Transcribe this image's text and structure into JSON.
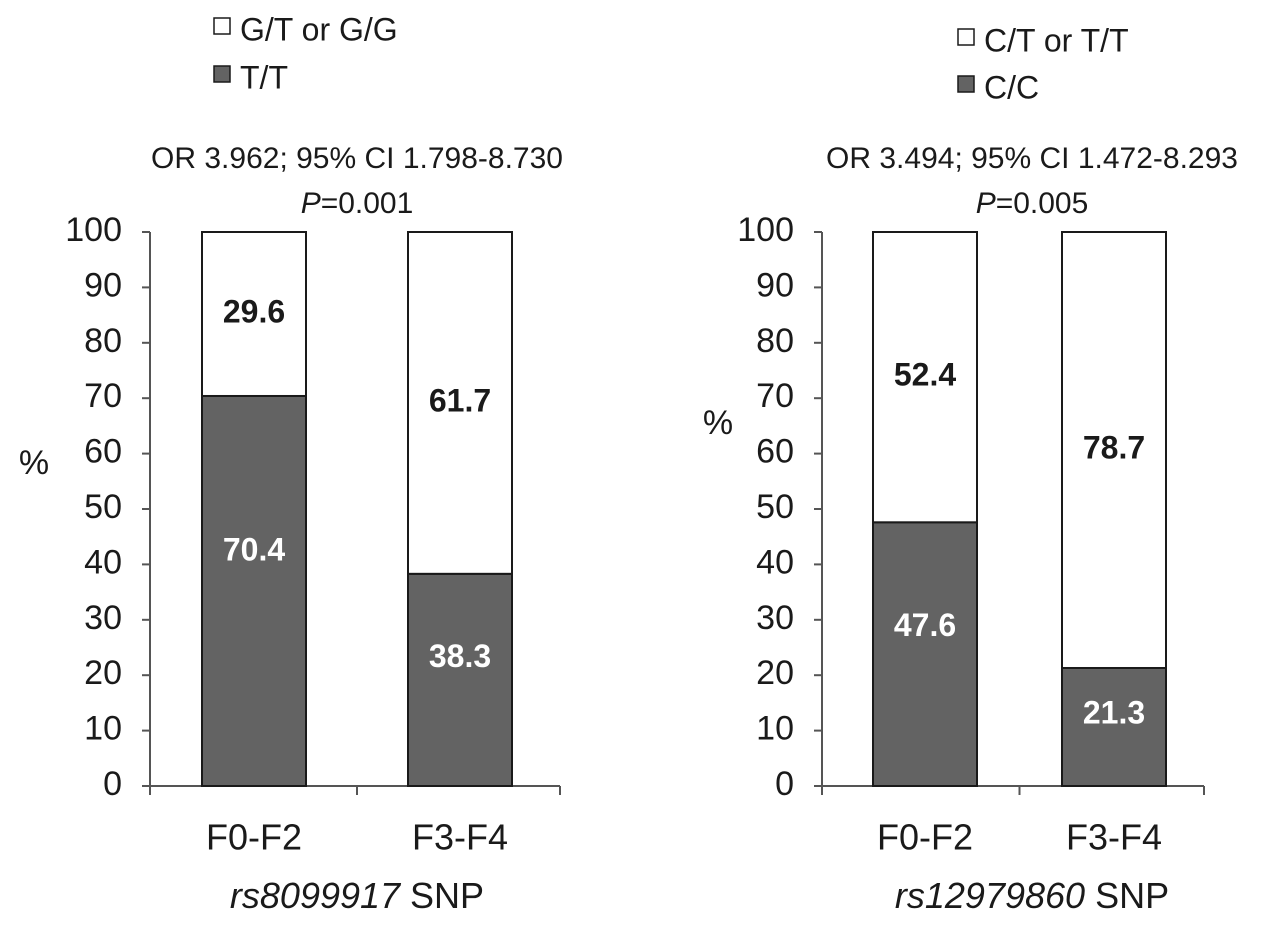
{
  "chart_data": [
    {
      "type": "bar",
      "stacked": true,
      "snp": "rs8099917",
      "xlabel_suffix": "SNP",
      "ylabel": "%",
      "ylim": [
        0,
        100
      ],
      "yticks": [
        0,
        10,
        20,
        30,
        40,
        50,
        60,
        70,
        80,
        90,
        100
      ],
      "stat_line1": "OR 3.962; 95% CI 1.798-8.730",
      "p_label": "P",
      "p_value": "=0.001",
      "categories": [
        "F0-F2",
        "F3-F4"
      ],
      "series": [
        {
          "name": "T/T",
          "color": "#636363",
          "label_color": "#ffffff",
          "values": [
            70.4,
            38.3
          ]
        },
        {
          "name": "G/T or G/G",
          "color": "#ffffff",
          "label_color": "#1a1a1a",
          "values": [
            29.6,
            61.7
          ]
        }
      ],
      "legend": [
        {
          "label": "G/T or G/G",
          "color": "#ffffff"
        },
        {
          "label": "T/T",
          "color": "#636363"
        }
      ]
    },
    {
      "type": "bar",
      "stacked": true,
      "snp": "rs12979860",
      "xlabel_suffix": "SNP",
      "ylabel": "%",
      "ylim": [
        0,
        100
      ],
      "yticks": [
        0,
        10,
        20,
        30,
        40,
        50,
        60,
        70,
        80,
        90,
        100
      ],
      "stat_line1": "OR 3.494; 95% CI 1.472-8.293",
      "p_label": "P",
      "p_value": "=0.005",
      "categories": [
        "F0-F2",
        "F3-F4"
      ],
      "series": [
        {
          "name": "C/C",
          "color": "#636363",
          "label_color": "#ffffff",
          "values": [
            47.6,
            21.3
          ]
        },
        {
          "name": "C/T or T/T",
          "color": "#ffffff",
          "label_color": "#1a1a1a",
          "values": [
            52.4,
            78.7
          ]
        }
      ],
      "legend": [
        {
          "label": "C/T or T/T",
          "color": "#ffffff"
        },
        {
          "label": "C/C",
          "color": "#636363"
        }
      ]
    }
  ]
}
